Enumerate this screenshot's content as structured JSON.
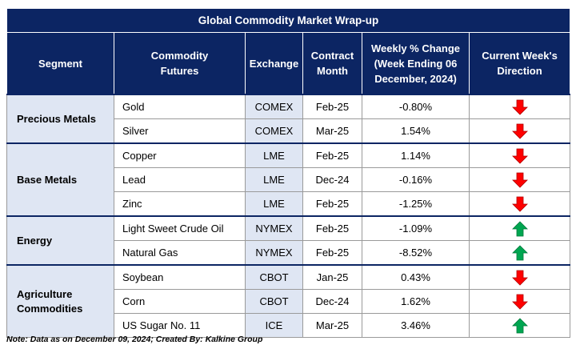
{
  "title": "Global Commodity Market Wrap-up",
  "headers": {
    "segment": "Segment",
    "commodity_line1": "Commodity",
    "commodity_line2": "Futures",
    "exchange": "Exchange",
    "month_line1": "Contract",
    "month_line2": "Month",
    "change_line1": "Weekly % Change",
    "change_line2": "(Week Ending  06",
    "change_line3": "December, 2024)",
    "direction_line1": "Current Week's",
    "direction_line2": "Direction"
  },
  "segments": [
    {
      "label_line1": "Precious Metals",
      "label_line2": ""
    },
    {
      "label_line1": "Base Metals",
      "label_line2": ""
    },
    {
      "label_line1": "Energy",
      "label_line2": ""
    },
    {
      "label_line1": "Agriculture",
      "label_line2": "Commodities"
    }
  ],
  "rows": [
    {
      "commodity": "Gold",
      "exchange": "COMEX",
      "month": "Feb-25",
      "change": "-0.80%",
      "direction": "down"
    },
    {
      "commodity": "Silver",
      "exchange": "COMEX",
      "month": "Mar-25",
      "change": "1.54%",
      "direction": "down"
    },
    {
      "commodity": "Copper",
      "exchange": "LME",
      "month": "Feb-25",
      "change": "1.14%",
      "direction": "down"
    },
    {
      "commodity": "Lead",
      "exchange": "LME",
      "month": "Dec-24",
      "change": "-0.16%",
      "direction": "down"
    },
    {
      "commodity": "Zinc",
      "exchange": "LME",
      "month": "Feb-25",
      "change": "-1.25%",
      "direction": "down"
    },
    {
      "commodity": "Light Sweet Crude Oil",
      "exchange": "NYMEX",
      "month": "Feb-25",
      "change": "-1.09%",
      "direction": "up"
    },
    {
      "commodity": "Natural Gas",
      "exchange": "NYMEX",
      "month": "Feb-25",
      "change": "-8.52%",
      "direction": "up"
    },
    {
      "commodity": "Soybean",
      "exchange": "CBOT",
      "month": "Jan-25",
      "change": "0.43%",
      "direction": "down"
    },
    {
      "commodity": "Corn",
      "exchange": "CBOT",
      "month": "Dec-24",
      "change": "1.62%",
      "direction": "down"
    },
    {
      "commodity": "US Sugar No. 11",
      "exchange": "ICE",
      "month": "Mar-25",
      "change": "3.46%",
      "direction": "up"
    }
  ],
  "colors": {
    "header_bg": "#0c2563",
    "shade": "#dfe6f3",
    "down": "#ff0000",
    "up": "#00a651"
  },
  "note": "Note: Data as on December 09, 2024; Created By: Kalkine Group"
}
